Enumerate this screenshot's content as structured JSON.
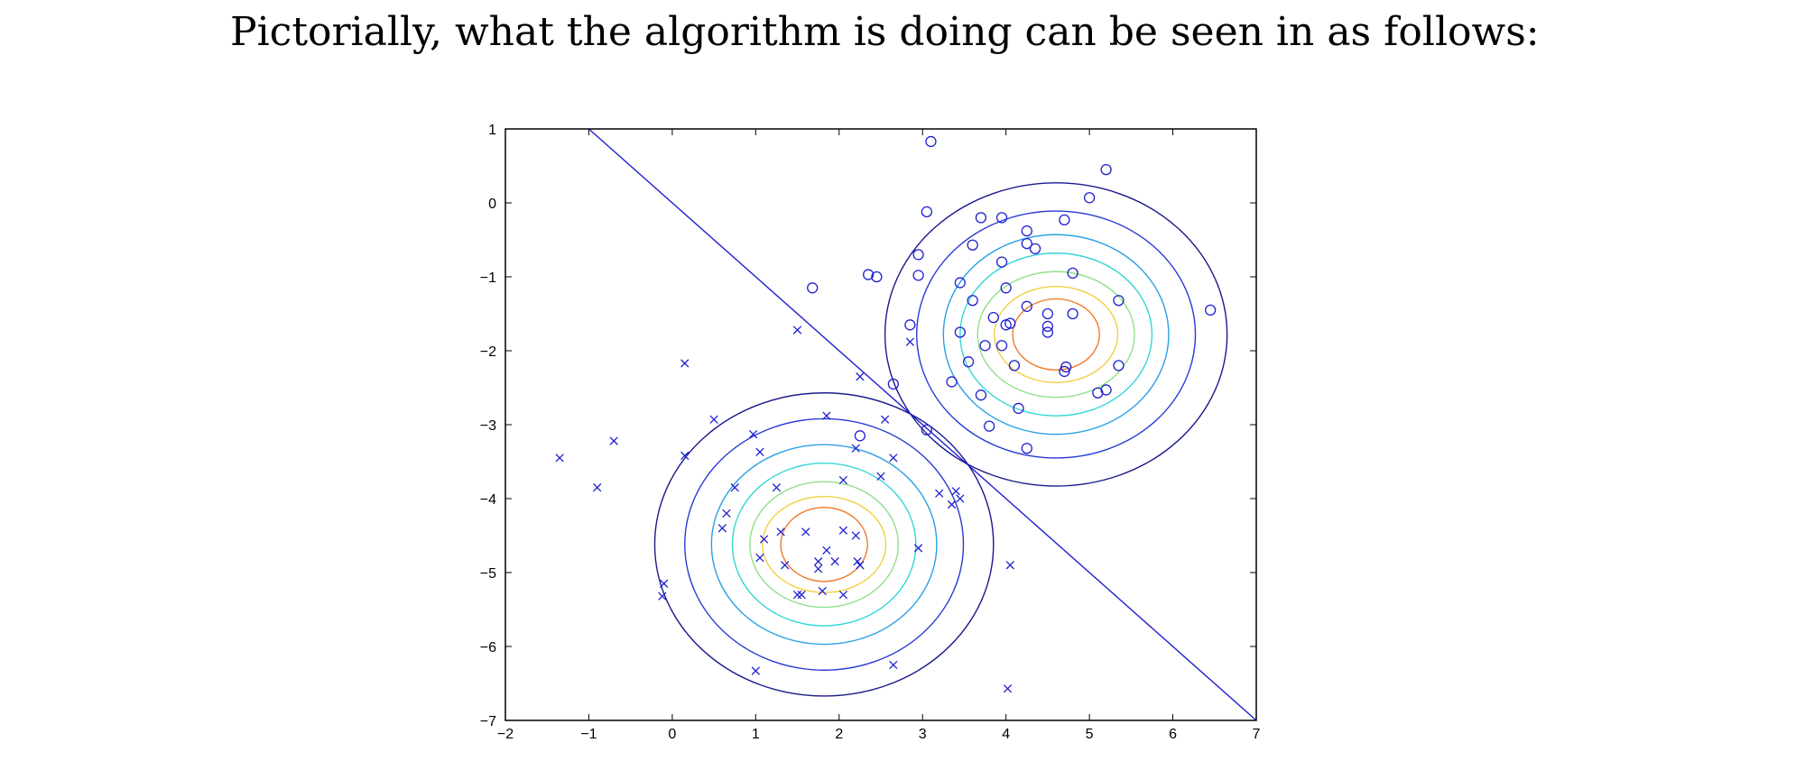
{
  "intro_text": "Pictorially, what the algorithm is doing can be seen in as follows:",
  "colors": {
    "markers": "#1f1fd0",
    "boundary": "#1f1fd0",
    "contours": [
      "#1a1a8c",
      "#2a3ad6",
      "#2aa0e6",
      "#33d6d6",
      "#8fe08a",
      "#f0d040",
      "#f07a2a",
      "#d62a2a",
      "#8a1a1a"
    ]
  },
  "chart_data": {
    "type": "scatter",
    "title": "",
    "xlabel": "",
    "ylabel": "",
    "xlim": [
      -2,
      7
    ],
    "ylim": [
      -7,
      1
    ],
    "x_ticks": [
      -2,
      -1,
      0,
      1,
      2,
      3,
      4,
      5,
      6,
      7
    ],
    "y_ticks": [
      1,
      0,
      -1,
      -2,
      -3,
      -4,
      -5,
      -6,
      -7
    ],
    "tick_labels_x": [
      "−2",
      "−1",
      "0",
      "1",
      "2",
      "3",
      "4",
      "5",
      "6",
      "7"
    ],
    "tick_labels_y": [
      "1",
      "0",
      "−1",
      "−2",
      "−3",
      "−4",
      "−5",
      "−6",
      "−7"
    ],
    "grid": false,
    "series": [
      {
        "marker": "x",
        "points": [
          [
            -1.35,
            -3.45
          ],
          [
            -0.9,
            -3.85
          ],
          [
            -0.7,
            -3.22
          ],
          [
            0.15,
            -2.17
          ],
          [
            0.5,
            -2.93
          ],
          [
            0.15,
            -3.42
          ],
          [
            1.5,
            -1.72
          ],
          [
            2.25,
            -2.35
          ],
          [
            2.55,
            -2.93
          ],
          [
            2.85,
            -1.88
          ],
          [
            0.97,
            -3.13
          ],
          [
            1.05,
            -3.37
          ],
          [
            1.85,
            -2.88
          ],
          [
            2.2,
            -3.32
          ],
          [
            2.65,
            -3.45
          ],
          [
            0.75,
            -3.85
          ],
          [
            0.65,
            -4.2
          ],
          [
            0.6,
            -4.4
          ],
          [
            1.25,
            -3.85
          ],
          [
            1.3,
            -4.45
          ],
          [
            1.1,
            -4.55
          ],
          [
            1.05,
            -4.8
          ],
          [
            1.6,
            -4.45
          ],
          [
            1.35,
            -4.9
          ],
          [
            1.5,
            -5.3
          ],
          [
            1.55,
            -5.3
          ],
          [
            1.75,
            -4.85
          ],
          [
            1.85,
            -4.7
          ],
          [
            1.75,
            -4.95
          ],
          [
            1.95,
            -4.85
          ],
          [
            2.05,
            -4.43
          ],
          [
            2.2,
            -4.5
          ],
          [
            2.22,
            -4.85
          ],
          [
            2.25,
            -4.9
          ],
          [
            2.05,
            -5.3
          ],
          [
            1.8,
            -5.25
          ],
          [
            2.05,
            -3.75
          ],
          [
            2.5,
            -3.7
          ],
          [
            2.95,
            -4.67
          ],
          [
            3.2,
            -3.93
          ],
          [
            3.4,
            -3.9
          ],
          [
            3.45,
            -4.0
          ],
          [
            3.35,
            -4.08
          ],
          [
            -0.1,
            -5.15
          ],
          [
            -0.12,
            -5.32
          ],
          [
            1.0,
            -6.33
          ],
          [
            2.65,
            -6.25
          ],
          [
            4.05,
            -4.9
          ],
          [
            4.02,
            -6.57
          ]
        ]
      },
      {
        "marker": "o",
        "points": [
          [
            3.1,
            0.83
          ],
          [
            5.2,
            0.45
          ],
          [
            5.0,
            0.07
          ],
          [
            3.05,
            -0.12
          ],
          [
            3.7,
            -0.2
          ],
          [
            3.95,
            -0.2
          ],
          [
            4.7,
            -0.23
          ],
          [
            4.25,
            -0.38
          ],
          [
            4.25,
            -0.55
          ],
          [
            4.35,
            -0.62
          ],
          [
            3.6,
            -0.57
          ],
          [
            2.95,
            -0.7
          ],
          [
            2.35,
            -0.97
          ],
          [
            2.45,
            -1.0
          ],
          [
            2.95,
            -0.98
          ],
          [
            1.68,
            -1.15
          ],
          [
            3.95,
            -0.8
          ],
          [
            4.8,
            -0.95
          ],
          [
            4.0,
            -1.15
          ],
          [
            3.45,
            -1.08
          ],
          [
            3.6,
            -1.32
          ],
          [
            4.25,
            -1.4
          ],
          [
            3.85,
            -1.55
          ],
          [
            4.0,
            -1.65
          ],
          [
            4.05,
            -1.63
          ],
          [
            4.5,
            -1.5
          ],
          [
            4.5,
            -1.67
          ],
          [
            4.5,
            -1.75
          ],
          [
            4.8,
            -1.5
          ],
          [
            5.35,
            -1.32
          ],
          [
            6.45,
            -1.45
          ],
          [
            2.85,
            -1.65
          ],
          [
            3.45,
            -1.75
          ],
          [
            3.75,
            -1.93
          ],
          [
            3.95,
            -1.93
          ],
          [
            3.55,
            -2.15
          ],
          [
            4.1,
            -2.2
          ],
          [
            4.72,
            -2.22
          ],
          [
            4.7,
            -2.28
          ],
          [
            5.35,
            -2.2
          ],
          [
            3.35,
            -2.42
          ],
          [
            2.65,
            -2.45
          ],
          [
            3.7,
            -2.6
          ],
          [
            5.1,
            -2.57
          ],
          [
            5.2,
            -2.53
          ],
          [
            4.15,
            -2.78
          ],
          [
            3.8,
            -3.02
          ],
          [
            3.05,
            -3.07
          ],
          [
            2.25,
            -3.15
          ],
          [
            4.25,
            -3.32
          ]
        ]
      }
    ],
    "gaussians": [
      {
        "center": [
          1.82,
          -4.62
        ],
        "contour_radii": [
          [
            2.03,
            2.05
          ],
          [
            1.67,
            1.7
          ],
          [
            1.35,
            1.35
          ],
          [
            1.1,
            1.1
          ],
          [
            0.89,
            0.85
          ],
          [
            0.74,
            0.65
          ],
          [
            0.52,
            0.5
          ]
        ]
      },
      {
        "center": [
          4.6,
          -1.78
        ],
        "contour_radii": [
          [
            2.05,
            2.05
          ],
          [
            1.67,
            1.67
          ],
          [
            1.35,
            1.35
          ],
          [
            1.15,
            1.1
          ],
          [
            0.94,
            0.85
          ],
          [
            0.74,
            0.65
          ],
          [
            0.52,
            0.48
          ]
        ]
      }
    ],
    "decision_boundary": [
      [
        -1.0,
        1.0
      ],
      [
        7.0,
        -7.0
      ]
    ]
  }
}
